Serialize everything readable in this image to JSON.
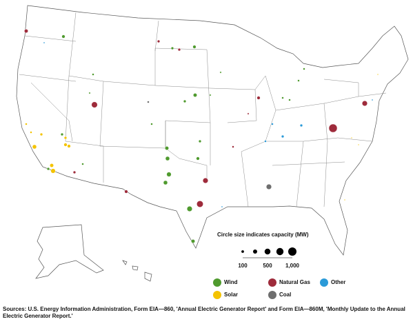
{
  "size_legend": {
    "title": "Circle size indicates capacity (MW)",
    "values": [
      100,
      250,
      500,
      750,
      1000
    ],
    "labels": [
      "100",
      null,
      "500",
      null,
      "1,000"
    ]
  },
  "legend": [
    {
      "name": "Wind",
      "color": "#4f9a2e"
    },
    {
      "name": "Natural Gas",
      "color": "#9e2b3b"
    },
    {
      "name": "Other",
      "color": "#2b9ad8"
    },
    {
      "name": "Solar",
      "color": "#f4c300"
    },
    {
      "name": "Coal",
      "color": "#6e6e6e"
    }
  ],
  "plants": [
    {
      "type": 0,
      "mw": 150
    },
    {
      "type": 0,
      "mw": 100
    },
    {
      "type": 0,
      "mw": 150
    },
    {
      "type": 0,
      "mw": 60
    },
    {
      "type": 0,
      "mw": 40
    },
    {
      "type": 0,
      "mw": 40
    },
    {
      "type": 0,
      "mw": 100
    },
    {
      "type": 0,
      "mw": 200
    },
    {
      "type": 0,
      "mw": 250
    },
    {
      "type": 0,
      "mw": 250
    },
    {
      "type": 0,
      "mw": 200
    },
    {
      "type": 0,
      "mw": 150
    },
    {
      "type": 0,
      "mw": 300
    },
    {
      "type": 0,
      "mw": 400
    },
    {
      "type": 0,
      "mw": 200
    },
    {
      "type": 0,
      "mw": 100
    },
    {
      "type": 0,
      "mw": 100
    },
    {
      "type": 0,
      "mw": 40
    },
    {
      "type": 0,
      "mw": 60
    },
    {
      "type": 0,
      "mw": 60
    },
    {
      "type": 0,
      "mw": 60
    },
    {
      "type": 0,
      "mw": 60
    },
    {
      "type": 0,
      "mw": 100
    },
    {
      "type": 0,
      "mw": 60
    },
    {
      "type": 0,
      "mw": 60
    },
    {
      "type": 3,
      "mw": 60
    },
    {
      "type": 3,
      "mw": 250
    },
    {
      "type": 3,
      "mw": 100
    },
    {
      "type": 3,
      "mw": 60
    },
    {
      "type": 3,
      "mw": 300
    },
    {
      "type": 3,
      "mw": 200
    },
    {
      "type": 3,
      "mw": 150
    },
    {
      "type": 3,
      "mw": 100
    },
    {
      "type": 3,
      "mw": 150
    },
    {
      "type": 3,
      "mw": 20
    },
    {
      "type": 3,
      "mw": 20
    },
    {
      "type": 3,
      "mw": 20
    },
    {
      "type": 3,
      "mw": 20
    },
    {
      "type": 1,
      "mw": 200
    },
    {
      "type": 1,
      "mw": 100
    },
    {
      "type": 1,
      "mw": 100
    },
    {
      "type": 1,
      "mw": 500
    },
    {
      "type": 1,
      "mw": 1000
    },
    {
      "type": 1,
      "mw": 400
    },
    {
      "type": 1,
      "mw": 400
    },
    {
      "type": 1,
      "mw": 600
    },
    {
      "type": 1,
      "mw": 150
    },
    {
      "type": 1,
      "mw": 150
    },
    {
      "type": 1,
      "mw": 60
    },
    {
      "type": 1,
      "mw": 100
    },
    {
      "type": 1,
      "mw": 40
    },
    {
      "type": 2,
      "mw": 30
    },
    {
      "type": 2,
      "mw": 100
    },
    {
      "type": 2,
      "mw": 100
    },
    {
      "type": 2,
      "mw": 60
    },
    {
      "type": 2,
      "mw": 60
    },
    {
      "type": 2,
      "mw": 30
    },
    {
      "type": 2,
      "mw": 30
    },
    {
      "type": 4,
      "mw": 400
    },
    {
      "type": 4,
      "mw": 60
    }
  ],
  "sources": "Sources:  U.S. Energy Information Administration, Form EIA—860, 'Annual Electric Generator Report' and Form EIA—860M, 'Monthly Update to the Annual Electric Generator Report.'"
}
